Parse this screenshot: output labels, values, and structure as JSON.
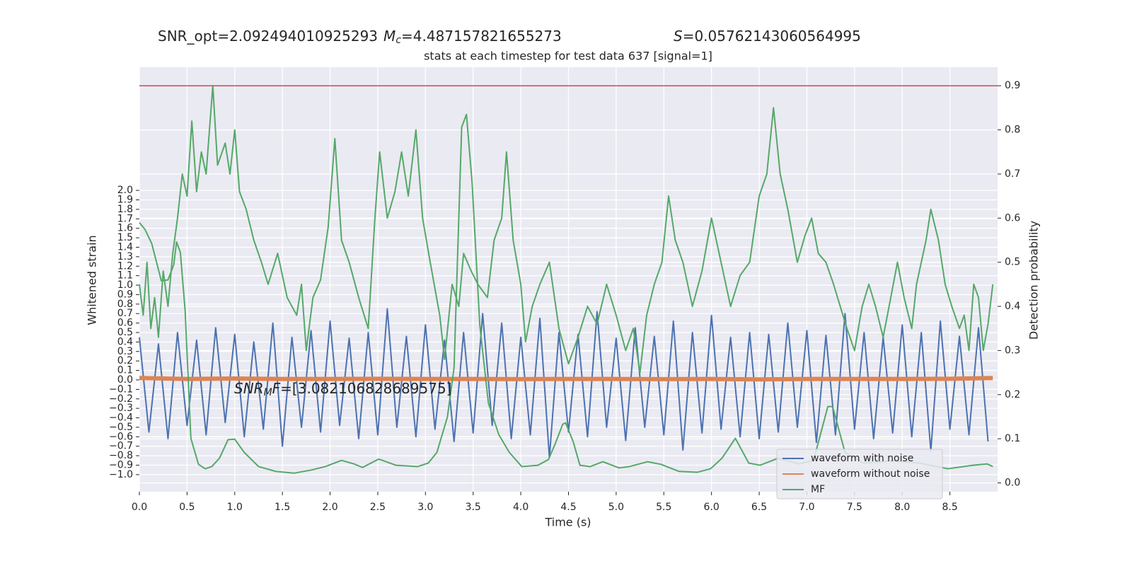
{
  "chart_data": {
    "type": "line",
    "title": {
      "snr_opt": "SNR_opt=2.092494010925293",
      "mc_symbol": "M",
      "mc_sub": "c",
      "mc_value": "=4.487157821655273",
      "s_symbol": "S",
      "s_value": "=0.05762143060564995"
    },
    "subtitle": "stats at each timestep for test data 637 [signal=1]",
    "annotation": {
      "symbol": "SNR",
      "sub": "M",
      "symbol2": "F",
      "value": "=[3.082106828689575]"
    },
    "xlabel": "Time (s)",
    "ylabel": "Whitened strain",
    "y2label": "Detection probability",
    "xlim": [
      0,
      9.0
    ],
    "ylim": [
      -1.18,
      3.3
    ],
    "y2lim": [
      -0.02,
      0.942
    ],
    "xticks": [
      {
        "value": 0,
        "label": "0.0"
      },
      0.5,
      {
        "value": 1,
        "label": "1.0"
      },
      1.5,
      {
        "value": 2,
        "label": "2.0"
      },
      2.5,
      {
        "value": 3,
        "label": "3.0"
      },
      3.5,
      {
        "value": 4,
        "label": "4.0"
      },
      4.5,
      {
        "value": 5,
        "label": "5.0"
      },
      5.5,
      {
        "value": 6,
        "label": "6.0"
      },
      6.5,
      {
        "value": 7,
        "label": "7.0"
      },
      7.5,
      {
        "value": 8,
        "label": "8.0"
      },
      8.5
    ],
    "yticks": [
      {
        "value": -1,
        "label": "−1.0"
      },
      {
        "value": -0.9,
        "label": "−0.9"
      },
      {
        "value": -0.8,
        "label": "−0.8"
      },
      {
        "value": -0.7,
        "label": "−0.7"
      },
      {
        "value": -0.6,
        "label": "−0.6"
      },
      {
        "value": -0.5,
        "label": "−0.5"
      },
      {
        "value": -0.4,
        "label": "−0.4"
      },
      {
        "value": -0.3,
        "label": "−0.3"
      },
      {
        "value": -0.2,
        "label": "−0.2"
      },
      {
        "value": -0.1,
        "label": "−0.1"
      },
      {
        "value": 0,
        "label": "0.0"
      },
      0.1,
      0.2,
      0.3,
      0.4,
      0.5,
      0.6,
      0.7,
      0.8,
      0.9,
      {
        "value": 1,
        "label": "1.0"
      },
      1.1,
      1.2,
      1.3,
      1.4,
      1.5,
      1.6,
      1.7,
      1.8,
      1.9,
      {
        "value": 2,
        "label": "2.0"
      }
    ],
    "y2ticks": [
      {
        "value": 0,
        "label": "0.0"
      },
      0.1,
      0.2,
      0.3,
      0.4,
      0.5,
      0.6,
      0.7,
      0.8,
      0.9
    ],
    "grid": true,
    "legend": "lower right",
    "threshold": {
      "value": 0.9,
      "color": "#c44e52",
      "axis": "y2"
    },
    "series": [
      {
        "name": "waveform with noise",
        "color": "#4c72b0",
        "width": 2,
        "x": [
          0,
          0.1,
          0.2,
          0.3,
          0.4,
          0.5,
          0.6,
          0.7,
          0.8,
          0.9,
          1,
          1.1,
          1.2,
          1.3,
          1.4,
          1.5,
          1.6,
          1.7,
          1.8,
          1.9,
          2,
          2.1,
          2.2,
          2.3,
          2.4,
          2.5,
          2.6,
          2.7,
          2.8,
          2.9,
          3,
          3.1,
          3.2,
          3.3,
          3.4,
          3.5,
          3.6,
          3.7,
          3.8,
          3.9,
          4,
          4.1,
          4.2,
          4.3,
          4.4,
          4.5,
          4.6,
          4.7,
          4.8,
          4.9,
          5,
          5.1,
          5.2,
          5.3,
          5.4,
          5.5,
          5.6,
          5.7,
          5.8,
          5.9,
          6,
          6.1,
          6.2,
          6.3,
          6.4,
          6.5,
          6.6,
          6.7,
          6.8,
          6.9,
          7,
          7.1,
          7.2,
          7.3,
          7.4,
          7.5,
          7.6,
          7.7,
          7.8,
          7.9,
          8,
          8.1,
          8.2,
          8.3,
          8.4,
          8.5,
          8.6,
          8.7,
          8.8,
          8.9
        ],
        "values": [
          0.45,
          -0.55,
          0.38,
          -0.62,
          0.5,
          -0.48,
          0.42,
          -0.58,
          0.55,
          -0.45,
          0.48,
          -0.6,
          0.4,
          -0.52,
          0.6,
          -0.7,
          0.45,
          -0.5,
          0.52,
          -0.55,
          0.62,
          -0.48,
          0.44,
          -0.62,
          0.5,
          -0.58,
          0.75,
          -0.5,
          0.46,
          -0.6,
          0.58,
          -0.52,
          0.42,
          -0.65,
          0.5,
          -0.56,
          0.7,
          -0.48,
          0.6,
          -0.62,
          0.45,
          -0.58,
          0.65,
          -0.82,
          0.5,
          -0.55,
          0.48,
          -0.6,
          0.72,
          -0.5,
          0.44,
          -0.64,
          0.55,
          -0.5,
          0.46,
          -0.58,
          0.62,
          -0.74,
          0.5,
          -0.56,
          0.68,
          -0.52,
          0.45,
          -0.6,
          0.5,
          -0.62,
          0.48,
          -0.55,
          0.6,
          -0.5,
          0.52,
          -0.66,
          0.47,
          -0.58,
          0.7,
          -0.52,
          0.5,
          -0.62,
          0.45,
          -0.56,
          0.58,
          -0.6,
          0.5,
          -0.75,
          0.62,
          -0.52,
          0.46,
          -0.58,
          0.55,
          -0.65
        ]
      },
      {
        "name": "waveform without noise",
        "color": "#dd8452",
        "width": 6,
        "x": [
          0,
          0.5,
          1,
          1.5,
          2,
          2.5,
          3,
          3.5,
          4,
          4.5,
          5,
          5.5,
          6,
          6.5,
          7,
          7.5,
          8,
          8.5,
          8.95
        ],
        "values": [
          0.02,
          0.01,
          0.015,
          0.01,
          0.01,
          0.012,
          0.01,
          0.01,
          0.008,
          0.01,
          0.01,
          0.008,
          0.01,
          0.005,
          0.01,
          0.01,
          0.01,
          0.012,
          0.02
        ]
      },
      {
        "name": "MF",
        "color": "#55a868",
        "width": 2,
        "axis": "y2",
        "x": [
          0,
          0.06,
          0.13,
          0.23,
          0.3,
          0.36,
          0.39,
          0.43,
          0.48,
          0.54,
          0.62,
          0.69,
          0.76,
          0.84,
          0.93,
          1,
          1.1,
          1.25,
          1.43,
          1.62,
          1.8,
          1.95,
          2.12,
          2.25,
          2.34,
          2.51,
          2.69,
          2.92,
          3.03,
          3.12,
          3.23,
          3.3,
          3.38,
          3.43,
          3.49,
          3.57,
          3.66,
          3.77,
          3.88,
          4.01,
          4.18,
          4.29,
          4.36,
          4.44,
          4.47,
          4.55,
          4.62,
          4.73,
          4.86,
          5.03,
          5.14,
          5.33,
          5.47,
          5.66,
          5.85,
          5.99,
          6.11,
          6.25,
          6.39,
          6.51,
          6.7,
          6.92,
          7.07,
          7.22,
          7.27,
          7.4,
          7.59,
          7.89,
          8.18,
          8.48,
          8.74,
          8.89,
          8.95
        ],
        "values": [
          0.59,
          0.574,
          0.542,
          0.458,
          0.46,
          0.494,
          0.546,
          0.522,
          0.39,
          0.101,
          0.042,
          0.032,
          0.037,
          0.056,
          0.098,
          0.099,
          0.069,
          0.037,
          0.026,
          0.022,
          0.029,
          0.037,
          0.051,
          0.043,
          0.035,
          0.054,
          0.04,
          0.037,
          0.045,
          0.069,
          0.149,
          0.261,
          0.806,
          0.835,
          0.678,
          0.357,
          0.181,
          0.109,
          0.069,
          0.037,
          0.04,
          0.053,
          0.088,
          0.133,
          0.136,
          0.093,
          0.04,
          0.037,
          0.048,
          0.034,
          0.037,
          0.048,
          0.042,
          0.026,
          0.024,
          0.032,
          0.056,
          0.101,
          0.045,
          0.04,
          0.056,
          0.043,
          0.051,
          0.173,
          0.173,
          0.069,
          0.045,
          0.05,
          0.045,
          0.032,
          0.04,
          0.043,
          0.037
        ]
      },
      {
        "color": "#55a868",
        "width": 2,
        "axis": "y2",
        "x": [
          0,
          0.04,
          0.08,
          0.12,
          0.16,
          0.2,
          0.25,
          0.3,
          0.35,
          0.4,
          0.45,
          0.5,
          0.55,
          0.6,
          0.65,
          0.7,
          0.77,
          0.82,
          0.9,
          0.95,
          1,
          1.05,
          1.12,
          1.2,
          1.28,
          1.35,
          1.45,
          1.55,
          1.65,
          1.7,
          1.75,
          1.82,
          1.9,
          1.98,
          2.05,
          2.12,
          2.2,
          2.3,
          2.4,
          2.47,
          2.52,
          2.6,
          2.68,
          2.75,
          2.82,
          2.9,
          2.97,
          3.05,
          3.15,
          3.2,
          3.28,
          3.35,
          3.4,
          3.48,
          3.55,
          3.65,
          3.72,
          3.8,
          3.85,
          3.92,
          4,
          4.05,
          4.12,
          4.2,
          4.3,
          4.4,
          4.5,
          4.6,
          4.7,
          4.8,
          4.9,
          5,
          5.1,
          5.18,
          5.25,
          5.32,
          5.4,
          5.48,
          5.55,
          5.62,
          5.7,
          5.8,
          5.9,
          6,
          6.1,
          6.2,
          6.3,
          6.4,
          6.5,
          6.58,
          6.65,
          6.72,
          6.8,
          6.9,
          6.98,
          7.05,
          7.12,
          7.2,
          7.28,
          7.35,
          7.42,
          7.5,
          7.58,
          7.65,
          7.72,
          7.8,
          7.88,
          7.95,
          8.02,
          8.1,
          8.15,
          8.2,
          8.25,
          8.3,
          8.38,
          8.45,
          8.52,
          8.6,
          8.65,
          8.7,
          8.75,
          8.8,
          8.85,
          8.9,
          8.95
        ],
        "values": [
          0.45,
          0.38,
          0.5,
          0.35,
          0.42,
          0.33,
          0.48,
          0.4,
          0.52,
          0.6,
          0.7,
          0.65,
          0.82,
          0.66,
          0.75,
          0.7,
          0.9,
          0.72,
          0.77,
          0.7,
          0.8,
          0.66,
          0.62,
          0.55,
          0.5,
          0.45,
          0.52,
          0.42,
          0.38,
          0.45,
          0.3,
          0.42,
          0.46,
          0.58,
          0.78,
          0.55,
          0.5,
          0.42,
          0.35,
          0.6,
          0.75,
          0.6,
          0.66,
          0.75,
          0.65,
          0.8,
          0.6,
          0.5,
          0.38,
          0.28,
          0.45,
          0.4,
          0.52,
          0.48,
          0.45,
          0.42,
          0.55,
          0.6,
          0.75,
          0.55,
          0.45,
          0.32,
          0.4,
          0.45,
          0.5,
          0.35,
          0.27,
          0.33,
          0.4,
          0.36,
          0.45,
          0.38,
          0.3,
          0.35,
          0.25,
          0.38,
          0.45,
          0.5,
          0.65,
          0.55,
          0.5,
          0.4,
          0.48,
          0.6,
          0.5,
          0.4,
          0.47,
          0.5,
          0.65,
          0.7,
          0.85,
          0.7,
          0.62,
          0.5,
          0.56,
          0.6,
          0.52,
          0.5,
          0.45,
          0.4,
          0.35,
          0.3,
          0.4,
          0.45,
          0.4,
          0.33,
          0.42,
          0.5,
          0.42,
          0.35,
          0.45,
          0.5,
          0.55,
          0.62,
          0.55,
          0.45,
          0.4,
          0.35,
          0.38,
          0.3,
          0.45,
          0.42,
          0.3,
          0.36,
          0.45
        ]
      }
    ]
  }
}
